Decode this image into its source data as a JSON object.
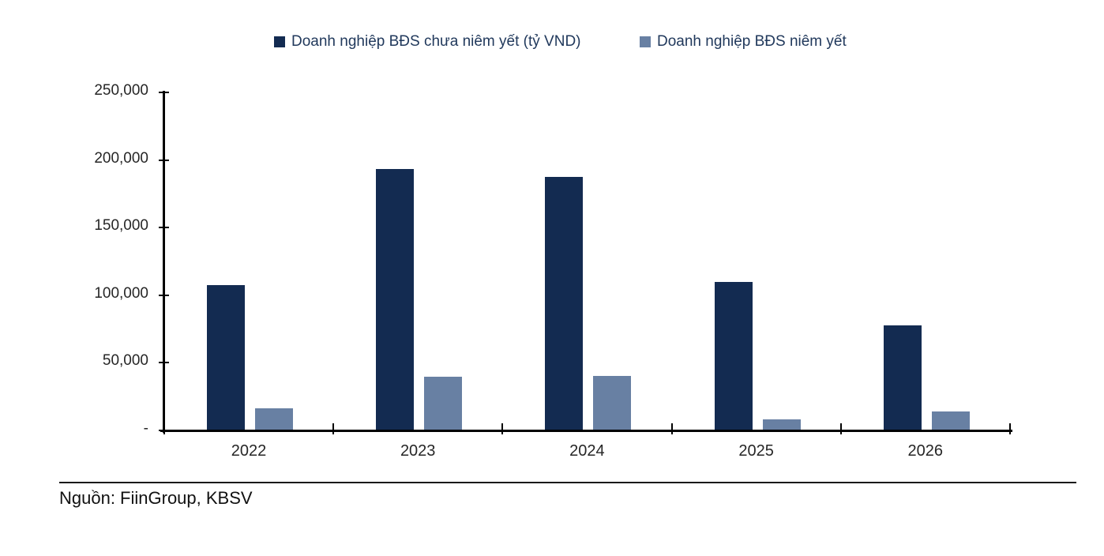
{
  "legend": {
    "items": [
      {
        "label": "Doanh nghiệp BĐS chưa niêm yết (tỷ VND)",
        "color": "#132B51"
      },
      {
        "label": "Doanh nghiệp BĐS niêm yết",
        "color": "#6880A3"
      }
    ]
  },
  "source": {
    "text": "Nguồn: FiinGroup, KBSV"
  },
  "chart_data": {
    "type": "bar",
    "title": "",
    "xlabel": "",
    "ylabel": "",
    "categories": [
      "2022",
      "2023",
      "2024",
      "2025",
      "2026"
    ],
    "series": [
      {
        "name": "Doanh nghiệp BĐS chưa niêm yết (tỷ VND)",
        "color": "#132B51",
        "values": [
          107000,
          193000,
          187000,
          109000,
          77000
        ]
      },
      {
        "name": "Doanh nghiệp BĐS niêm yết",
        "color": "#6880A3",
        "values": [
          16000,
          39000,
          40000,
          7500,
          13500
        ]
      }
    ],
    "ylim": [
      0,
      250000
    ],
    "yticks": [
      {
        "value": 250000,
        "label": "250,000"
      },
      {
        "value": 200000,
        "label": "200,000"
      },
      {
        "value": 150000,
        "label": "150,000"
      },
      {
        "value": 100000,
        "label": "100,000"
      },
      {
        "value": 50000,
        "label": "50,000"
      },
      {
        "value": 0,
        "label": "-"
      }
    ],
    "grid": false,
    "legend_position": "top"
  }
}
